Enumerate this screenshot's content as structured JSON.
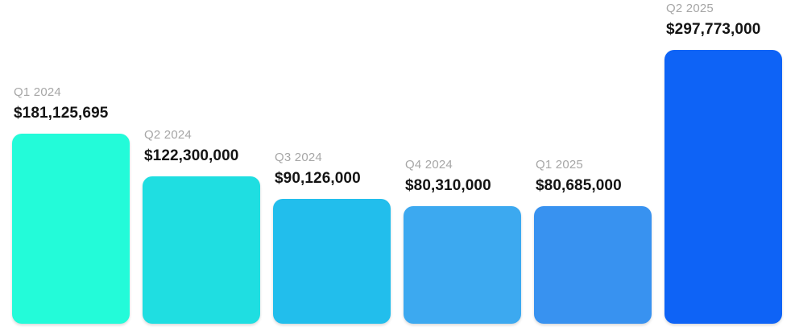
{
  "chart_data": {
    "type": "bar",
    "title": "",
    "xlabel": "",
    "ylabel": "",
    "grid": false,
    "legend_position": "none",
    "axes_visible": false,
    "background_color": "#FFFFFF",
    "category_label_color": "#A6A6A6",
    "value_label_color": "#141414",
    "categories": [
      "Q1 2024",
      "Q2 2024",
      "Q3 2024",
      "Q4 2024",
      "Q1 2025",
      "Q2 2025"
    ],
    "values": [
      181125695,
      122300000,
      90126000,
      80310000,
      80685000,
      297773000
    ],
    "value_labels": [
      "$181,125,695",
      "$122,300,000",
      "$90,126,000",
      "$80,310,000",
      "$80,685,000",
      "$297,773,000"
    ],
    "bar_colors": [
      "#23FBD9",
      "#1FDEE1",
      "#22BEEC",
      "#3CA9F0",
      "#3892F0",
      "#0E63F6"
    ]
  }
}
